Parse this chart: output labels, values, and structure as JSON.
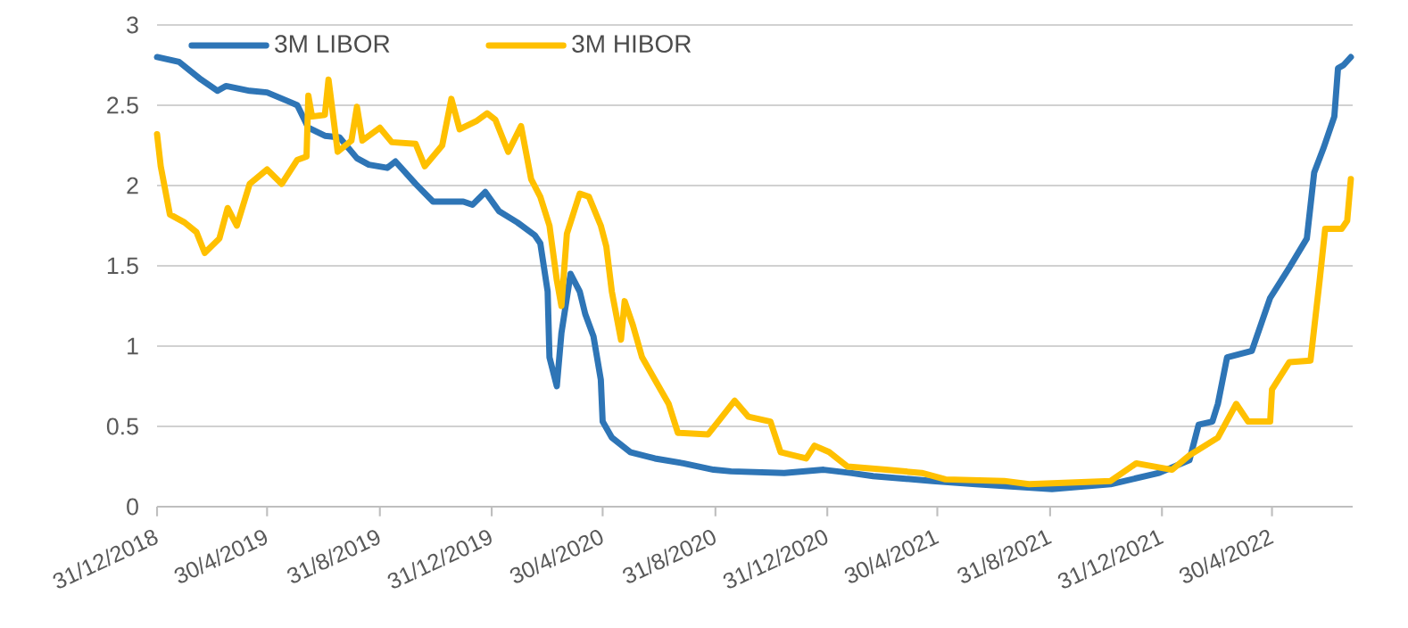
{
  "chart_data": {
    "type": "line",
    "xlim": [
      "2018-12-31",
      "2022-07-27"
    ],
    "xticks": [
      {
        "value": "2018-12-31",
        "label": "31/12/2018"
      },
      {
        "value": "2019-04-30",
        "label": "30/4/2019"
      },
      {
        "value": "2019-08-31",
        "label": "31/8/2019"
      },
      {
        "value": "2019-12-31",
        "label": "31/12/2019"
      },
      {
        "value": "2020-04-30",
        "label": "30/4/2020"
      },
      {
        "value": "2020-08-31",
        "label": "31/8/2020"
      },
      {
        "value": "2020-12-31",
        "label": "31/12/2020"
      },
      {
        "value": "2021-04-30",
        "label": "30/4/2021"
      },
      {
        "value": "2021-08-31",
        "label": "31/8/2021"
      },
      {
        "value": "2021-12-31",
        "label": "31/12/2021"
      },
      {
        "value": "2022-04-30",
        "label": "30/4/2022"
      }
    ],
    "ylim": [
      0,
      3
    ],
    "yticks": [
      0,
      0.5,
      1,
      1.5,
      2,
      2.5,
      3
    ],
    "grid": "y",
    "legend": "top left",
    "marker": "none",
    "line_style": "solid",
    "series": [
      {
        "name": "3M LIBOR",
        "color": "#2e75b6",
        "x": [
          "2018-12-31",
          "2019-01-24",
          "2019-02-17",
          "2019-03-07",
          "2019-03-16",
          "2019-04-11",
          "2019-04-30",
          "2019-05-25",
          "2019-06-02",
          "2019-06-14",
          "2019-07-02",
          "2019-07-18",
          "2019-08-06",
          "2019-08-19",
          "2019-09-08",
          "2019-09-17",
          "2019-10-09",
          "2019-10-28",
          "2019-11-30",
          "2019-12-10",
          "2019-12-24",
          "2020-01-08",
          "2020-01-28",
          "2020-02-16",
          "2020-02-22",
          "2020-03-01",
          "2020-03-03",
          "2020-03-11",
          "2020-03-16",
          "2020-03-26",
          "2020-04-05",
          "2020-04-11",
          "2020-04-20",
          "2020-04-28",
          "2020-04-30",
          "2020-05-10",
          "2020-05-30",
          "2020-06-26",
          "2020-07-27",
          "2020-08-29",
          "2020-09-17",
          "2020-11-14",
          "2020-12-27",
          "2021-01-25",
          "2021-02-19",
          "2021-04-25",
          "2021-06-11",
          "2021-09-02",
          "2021-11-05",
          "2021-12-28",
          "2022-01-30",
          "2022-02-09",
          "2022-02-24",
          "2022-03-02",
          "2022-03-12",
          "2022-04-08",
          "2022-04-28",
          "2022-05-19",
          "2022-06-07",
          "2022-06-15",
          "2022-06-25",
          "2022-07-07",
          "2022-07-11",
          "2022-07-17",
          "2022-07-25"
        ],
        "values": [
          2.8,
          2.77,
          2.66,
          2.59,
          2.62,
          2.59,
          2.58,
          2.52,
          2.5,
          2.36,
          2.31,
          2.3,
          2.17,
          2.13,
          2.11,
          2.15,
          2.01,
          1.9,
          1.9,
          1.88,
          1.96,
          1.84,
          1.77,
          1.69,
          1.64,
          1.34,
          0.93,
          0.75,
          1.08,
          1.45,
          1.34,
          1.2,
          1.06,
          0.79,
          0.53,
          0.43,
          0.34,
          0.3,
          0.27,
          0.23,
          0.22,
          0.21,
          0.23,
          0.21,
          0.19,
          0.16,
          0.14,
          0.11,
          0.14,
          0.21,
          0.29,
          0.51,
          0.53,
          0.64,
          0.93,
          0.97,
          1.3,
          1.49,
          1.67,
          2.08,
          2.23,
          2.43,
          2.73,
          2.75,
          2.8
        ]
      },
      {
        "name": "3M HIBOR",
        "color": "#ffc000",
        "x": [
          "2018-12-31",
          "2019-01-04",
          "2019-01-14",
          "2019-01-30",
          "2019-02-12",
          "2019-02-21",
          "2019-03-09",
          "2019-03-18",
          "2019-03-28",
          "2019-04-11",
          "2019-04-30",
          "2019-05-16",
          "2019-06-02",
          "2019-06-12",
          "2019-06-14",
          "2019-06-18",
          "2019-07-02",
          "2019-07-06",
          "2019-07-16",
          "2019-07-31",
          "2019-08-06",
          "2019-08-12",
          "2019-08-31",
          "2019-09-13",
          "2019-10-09",
          "2019-10-19",
          "2019-11-07",
          "2019-11-17",
          "2019-11-26",
          "2019-12-14",
          "2019-12-26",
          "2020-01-04",
          "2020-01-18",
          "2020-02-01",
          "2020-02-12",
          "2020-02-22",
          "2020-03-03",
          "2020-03-11",
          "2020-03-16",
          "2020-03-22",
          "2020-04-05",
          "2020-04-15",
          "2020-04-28",
          "2020-05-04",
          "2020-05-10",
          "2020-05-20",
          "2020-05-24",
          "2020-06-02",
          "2020-06-12",
          "2020-06-26",
          "2020-07-11",
          "2020-07-21",
          "2020-08-23",
          "2020-09-03",
          "2020-09-21",
          "2020-10-06",
          "2020-10-30",
          "2020-11-10",
          "2020-12-08",
          "2020-12-17",
          "2021-01-02",
          "2021-01-22",
          "2021-03-05",
          "2021-04-13",
          "2021-05-09",
          "2021-07-12",
          "2021-08-08",
          "2021-11-05",
          "2021-12-03",
          "2022-01-11",
          "2022-01-30",
          "2022-03-02",
          "2022-03-22",
          "2022-04-04",
          "2022-04-28",
          "2022-04-30",
          "2022-05-19",
          "2022-06-11",
          "2022-06-21",
          "2022-06-27",
          "2022-07-15",
          "2022-07-21",
          "2022-07-25"
        ],
        "values": [
          2.32,
          2.12,
          1.82,
          1.77,
          1.71,
          1.58,
          1.67,
          1.86,
          1.75,
          2.01,
          2.1,
          2.01,
          2.16,
          2.18,
          2.56,
          2.43,
          2.44,
          2.66,
          2.21,
          2.28,
          2.49,
          2.28,
          2.36,
          2.27,
          2.26,
          2.12,
          2.25,
          2.54,
          2.35,
          2.4,
          2.45,
          2.41,
          2.21,
          2.37,
          2.04,
          1.93,
          1.75,
          1.41,
          1.25,
          1.7,
          1.95,
          1.93,
          1.75,
          1.62,
          1.34,
          1.04,
          1.28,
          1.13,
          0.93,
          0.79,
          0.64,
          0.46,
          0.45,
          0.53,
          0.66,
          0.56,
          0.53,
          0.34,
          0.3,
          0.38,
          0.34,
          0.25,
          0.23,
          0.21,
          0.17,
          0.16,
          0.14,
          0.16,
          0.27,
          0.23,
          0.32,
          0.43,
          0.64,
          0.53,
          0.53,
          0.73,
          0.9,
          0.91,
          1.41,
          1.73,
          1.73,
          1.78,
          2.04
        ]
      }
    ]
  }
}
